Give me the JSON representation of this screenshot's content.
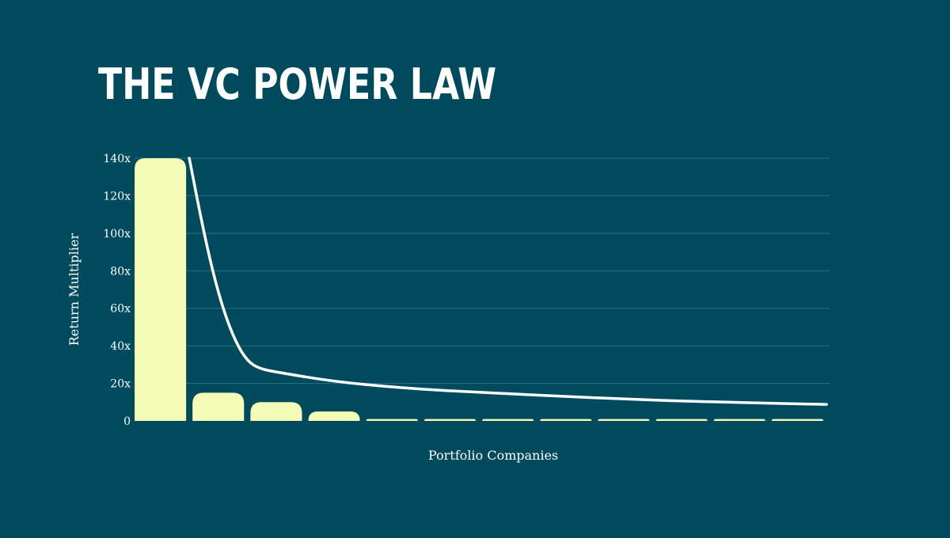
{
  "chart_data": {
    "type": "bar",
    "title": "THE VC POWER LAW",
    "xlabel": "Portfolio Companies",
    "ylabel": "Return Multiplier",
    "ylim": [
      0,
      140
    ],
    "yticks": [
      {
        "value": 0,
        "label": "0"
      },
      {
        "value": 20,
        "label": "20x"
      },
      {
        "value": 40,
        "label": "40x"
      },
      {
        "value": 60,
        "label": "60x"
      },
      {
        "value": 80,
        "label": "80x"
      },
      {
        "value": 100,
        "label": "100x"
      },
      {
        "value": 120,
        "label": "120x"
      },
      {
        "value": 140,
        "label": "140x"
      }
    ],
    "grid": true,
    "values": [
      140,
      15,
      10,
      5,
      1,
      1,
      1,
      1,
      1,
      1,
      1,
      1
    ],
    "trend_line": [
      {
        "x": 1.5,
        "y": 140
      },
      {
        "x": 1.7,
        "y": 108
      },
      {
        "x": 1.9,
        "y": 80
      },
      {
        "x": 2.1,
        "y": 58
      },
      {
        "x": 2.3,
        "y": 42
      },
      {
        "x": 2.5,
        "y": 32
      },
      {
        "x": 2.7,
        "y": 28
      },
      {
        "x": 3.0,
        "y": 26
      },
      {
        "x": 4.0,
        "y": 21
      },
      {
        "x": 5.0,
        "y": 18
      },
      {
        "x": 6.0,
        "y": 16
      },
      {
        "x": 7.0,
        "y": 14.5
      },
      {
        "x": 8.0,
        "y": 13
      },
      {
        "x": 9.0,
        "y": 11.7
      },
      {
        "x": 10.0,
        "y": 10.6
      },
      {
        "x": 11.0,
        "y": 9.8
      },
      {
        "x": 12.0,
        "y": 9.1
      },
      {
        "x": 12.5,
        "y": 8.8
      }
    ],
    "colors": {
      "background": "#004a5e",
      "bar": "#f3fbb6",
      "line": "#ffffff",
      "grid": "#2a6e80"
    }
  }
}
